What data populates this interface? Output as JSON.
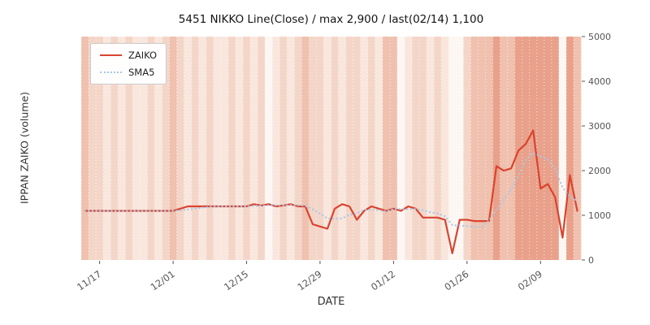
{
  "chart_data": {
    "type": "line",
    "title": "5451 NIKKO Line(Close) / max 2,900 / last(02/14) 1,100",
    "xlabel": "DATE",
    "ylabel": "IPPAN ZAIKO (volume)",
    "ylim": [
      0,
      5000
    ],
    "y_ticks": [
      0,
      1000,
      2000,
      3000,
      4000,
      5000
    ],
    "y_tick_side": "right",
    "grid": "vertical-daily-dashed-white",
    "x_ticks": [
      {
        "index": 2,
        "label": "11/17"
      },
      {
        "index": 12,
        "label": "12/01"
      },
      {
        "index": 22,
        "label": "12/15"
      },
      {
        "index": 32,
        "label": "12/29"
      },
      {
        "index": 42,
        "label": "01/12"
      },
      {
        "index": 52,
        "label": "01/26"
      },
      {
        "index": 62,
        "label": "02/09"
      }
    ],
    "legend": {
      "position": "upper-left",
      "entries": [
        {
          "name": "ZAIKO",
          "color": "#d9442f",
          "line_style": "solid"
        },
        {
          "name": "SMA5",
          "color": "#a8c8e8",
          "line_style": "dotted"
        }
      ]
    },
    "series": [
      {
        "name": "ZAIKO",
        "color": "#d9442f",
        "style": "solid",
        "values": [
          1100,
          1100,
          1100,
          1100,
          1100,
          1100,
          1100,
          1100,
          1100,
          1100,
          1100,
          1100,
          1100,
          1150,
          1200,
          1200,
          1200,
          1200,
          1200,
          1200,
          1200,
          1200,
          1200,
          1250,
          1220,
          1250,
          1200,
          1220,
          1250,
          1200,
          1200,
          800,
          750,
          700,
          1150,
          1250,
          1200,
          900,
          1100,
          1200,
          1150,
          1100,
          1150,
          1100,
          1200,
          1150,
          950,
          950,
          950,
          900,
          150,
          900,
          900,
          870,
          870,
          870,
          2100,
          2000,
          2050,
          2450,
          2600,
          2900,
          1600,
          1700,
          1400,
          500,
          1900,
          1100
        ]
      },
      {
        "name": "SMA5",
        "color": "#a8c8e8",
        "style": "dotted",
        "derived_from": "ZAIKO",
        "window": 5
      }
    ],
    "background_bands": {
      "palette": [
        "#fdf7f4",
        "#f9e7de",
        "#f4d6c9",
        "#efc1ae",
        "#e9a18b"
      ],
      "levels": [
        3,
        2,
        2,
        1,
        2,
        1,
        2,
        1,
        1,
        2,
        1,
        2,
        3,
        2,
        1,
        2,
        1,
        2,
        1,
        1,
        2,
        1,
        2,
        1,
        2,
        0,
        1,
        2,
        1,
        2,
        3,
        2,
        2,
        1,
        2,
        1,
        2,
        2,
        1,
        2,
        1,
        3,
        3,
        0,
        1,
        2,
        2,
        1,
        2,
        1,
        0,
        0,
        2,
        3,
        3,
        3,
        4,
        3,
        3,
        4,
        4,
        4,
        4,
        4,
        4,
        0,
        4,
        3
      ]
    },
    "stats": {
      "max": 2900,
      "last_date": "02/14",
      "last_value": 1100
    }
  }
}
